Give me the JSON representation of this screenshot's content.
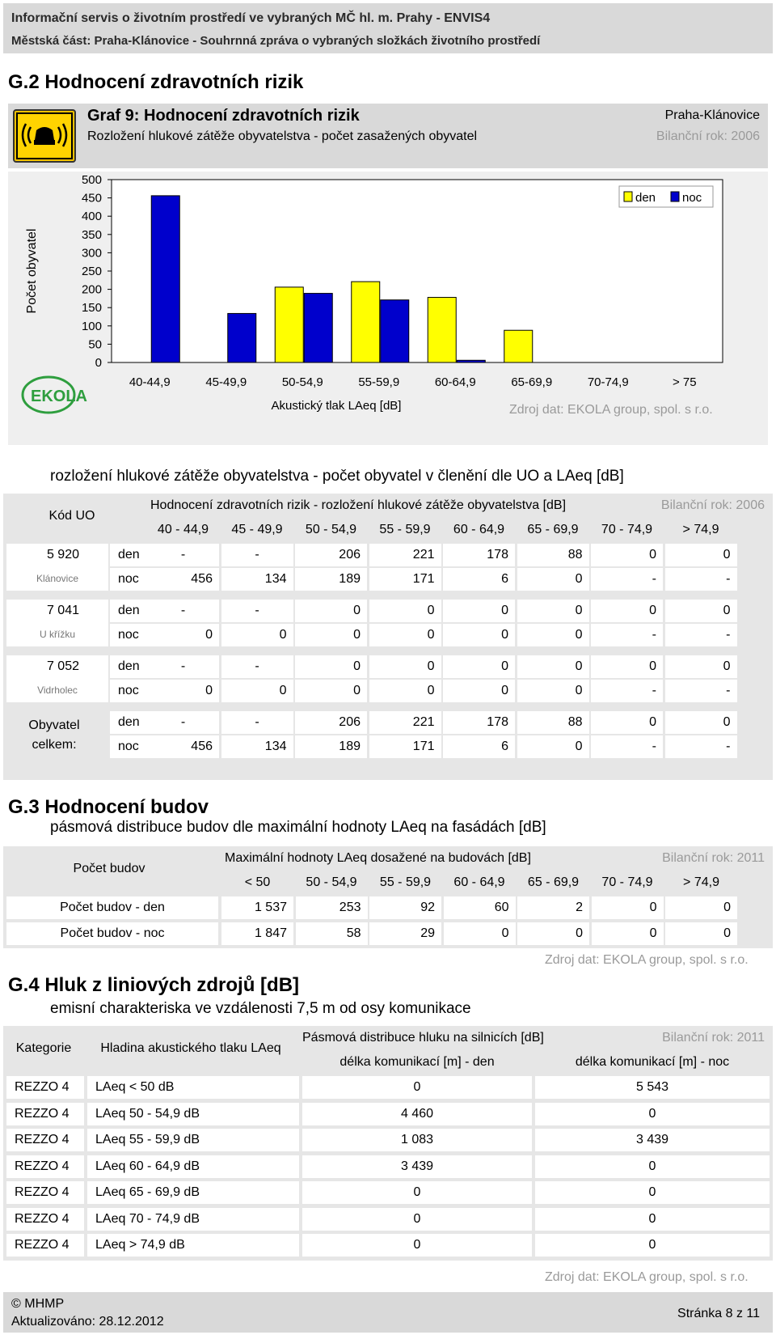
{
  "header": {
    "line1": "Informační servis o životním prostředí ve vybraných MČ hl. m. Prahy - ENVIS4",
    "line2": "Městská část: Praha-Klánovice - Souhrnná zpráva o vybraných složkách životního prostředí"
  },
  "section_g2": {
    "title": "G.2  Hodnocení zdravotních rizik",
    "graph_title": "Graf 9: Hodnocení zdravotních rizik",
    "graph_subtitle": "Rozložení hlukové zátěže obyvatelstva - počet zasažených obyvatel",
    "district": "Praha-Klánovice",
    "year": "Bilanční rok: 2006",
    "source": "Zdroj dat: EKOLA group, spol. s r.o.",
    "logo_icon": "noise-warning-icon",
    "ekola_logo": "ekola-logo-icon"
  },
  "chart_data": {
    "type": "bar",
    "categories": [
      "40-44,9",
      "45-49,9",
      "50-54,9",
      "55-59,9",
      "60-64,9",
      "65-69,9",
      "70-74,9",
      "> 75"
    ],
    "series": [
      {
        "name": "den",
        "values": [
          0,
          0,
          206,
          221,
          178,
          88,
          0,
          0
        ],
        "color": "#ffff00"
      },
      {
        "name": "noc",
        "values": [
          456,
          134,
          189,
          171,
          6,
          0,
          0,
          0
        ],
        "color": "#0000cc"
      }
    ],
    "ylim": [
      0,
      500
    ],
    "yticks": [
      "500",
      "450",
      "400",
      "350",
      "300",
      "250",
      "200",
      "150",
      "100",
      "50",
      "0"
    ],
    "xlabel": "Akustický tlak LAeq [dB]",
    "ylabel": "Počet obyvatel",
    "legend": "top-right",
    "grid": false
  },
  "table1": {
    "caption": "rozložení hlukové zátěže obyvatelstva - počet obyvatel v členění dle UO a LAeq [dB]",
    "code_header": "Kód UO",
    "title": "Hodnocení zdravotních rizik - rozložení hlukové zátěže obyvatelstva [dB]",
    "year": "Bilanční rok: 2006",
    "columns": [
      "40 - 44,9",
      "45 - 49,9",
      "50 - 54,9",
      "55 - 59,9",
      "60 - 64,9",
      "65 - 69,9",
      "70 - 74,9",
      "> 74,9"
    ],
    "groups": [
      {
        "code": "5 920",
        "name": "Klánovice",
        "rows": [
          {
            "label": "den",
            "values": [
              "-",
              "-",
              "206",
              "221",
              "178",
              "88",
              "0",
              "0"
            ]
          },
          {
            "label": "noc",
            "values": [
              "456",
              "134",
              "189",
              "171",
              "6",
              "0",
              "-",
              "-"
            ]
          }
        ]
      },
      {
        "code": "7 041",
        "name": "U křížku",
        "rows": [
          {
            "label": "den",
            "values": [
              "-",
              "-",
              "0",
              "0",
              "0",
              "0",
              "0",
              "0"
            ]
          },
          {
            "label": "noc",
            "values": [
              "0",
              "0",
              "0",
              "0",
              "0",
              "0",
              "-",
              "-"
            ]
          }
        ]
      },
      {
        "code": "7 052",
        "name": "Vidrholec",
        "rows": [
          {
            "label": "den",
            "values": [
              "-",
              "-",
              "0",
              "0",
              "0",
              "0",
              "0",
              "0"
            ]
          },
          {
            "label": "noc",
            "values": [
              "0",
              "0",
              "0",
              "0",
              "0",
              "0",
              "-",
              "-"
            ]
          }
        ]
      }
    ],
    "total_label_1": "Obyvatel",
    "total_label_2": "celkem:",
    "totals": [
      {
        "label": "den",
        "values": [
          "-",
          "-",
          "206",
          "221",
          "178",
          "88",
          "0",
          "0"
        ]
      },
      {
        "label": "noc",
        "values": [
          "456",
          "134",
          "189",
          "171",
          "6",
          "0",
          "-",
          "-"
        ]
      }
    ]
  },
  "section_g3": {
    "title": "G.3  Hodnocení budov",
    "subtitle": "pásmová distribuce budov dle maximální hodnoty LAeq na fasádách [dB]",
    "count_header": "Počet budov",
    "table_title": "Maximální hodnoty LAeq dosažené na budovách [dB]",
    "year": "Bilanční rok: 2011",
    "columns": [
      "< 50",
      "50 - 54,9",
      "55 - 59,9",
      "60 - 64,9",
      "65 - 69,9",
      "70 - 74,9",
      "> 74,9"
    ],
    "rows": [
      {
        "label": "Počet budov - den",
        "values": [
          "1 537",
          "253",
          "92",
          "60",
          "2",
          "0",
          "0"
        ]
      },
      {
        "label": "Počet budov - noc",
        "values": [
          "1 847",
          "58",
          "29",
          "0",
          "0",
          "0",
          "0"
        ]
      }
    ],
    "source": "Zdroj dat: EKOLA group, spol. s r.o."
  },
  "section_g4": {
    "title": "G.4  Hluk z liniových zdrojů [dB]",
    "subtitle": "emisní charakteriska ve vzdálenosti 7,5 m od osy komunikace",
    "h_category": "Kategorie",
    "h_level": "Hladina akustického tlaku LAeq",
    "table_title": "Pásmová distribuce hluku na silnicích [dB]",
    "year": "Bilanční rok: 2011",
    "h_day": "délka komunikací [m] - den",
    "h_night": "délka komunikací [m] - noc",
    "rows": [
      {
        "cat": "REZZO 4",
        "level": "LAeq < 50 dB",
        "den": "0",
        "noc": "5 543"
      },
      {
        "cat": "REZZO 4",
        "level": "LAeq 50 - 54,9 dB",
        "den": "4 460",
        "noc": "0"
      },
      {
        "cat": "REZZO 4",
        "level": "LAeq 55 - 59,9 dB",
        "den": "1 083",
        "noc": "3 439"
      },
      {
        "cat": "REZZO 4",
        "level": "LAeq 60 - 64,9 dB",
        "den": "3 439",
        "noc": "0"
      },
      {
        "cat": "REZZO 4",
        "level": "LAeq 65 - 69,9 dB",
        "den": "0",
        "noc": "0"
      },
      {
        "cat": "REZZO 4",
        "level": "LAeq 70 - 74,9 dB",
        "den": "0",
        "noc": "0"
      },
      {
        "cat": "REZZO 4",
        "level": "LAeq > 74,9 dB",
        "den": "0",
        "noc": "0"
      }
    ],
    "source": "Zdroj dat: EKOLA group, spol. s r.o."
  },
  "footer": {
    "copyright": "© MHMP",
    "updated": "Aktualizováno: 28.12.2012",
    "page": "Stránka 8 z 11"
  }
}
